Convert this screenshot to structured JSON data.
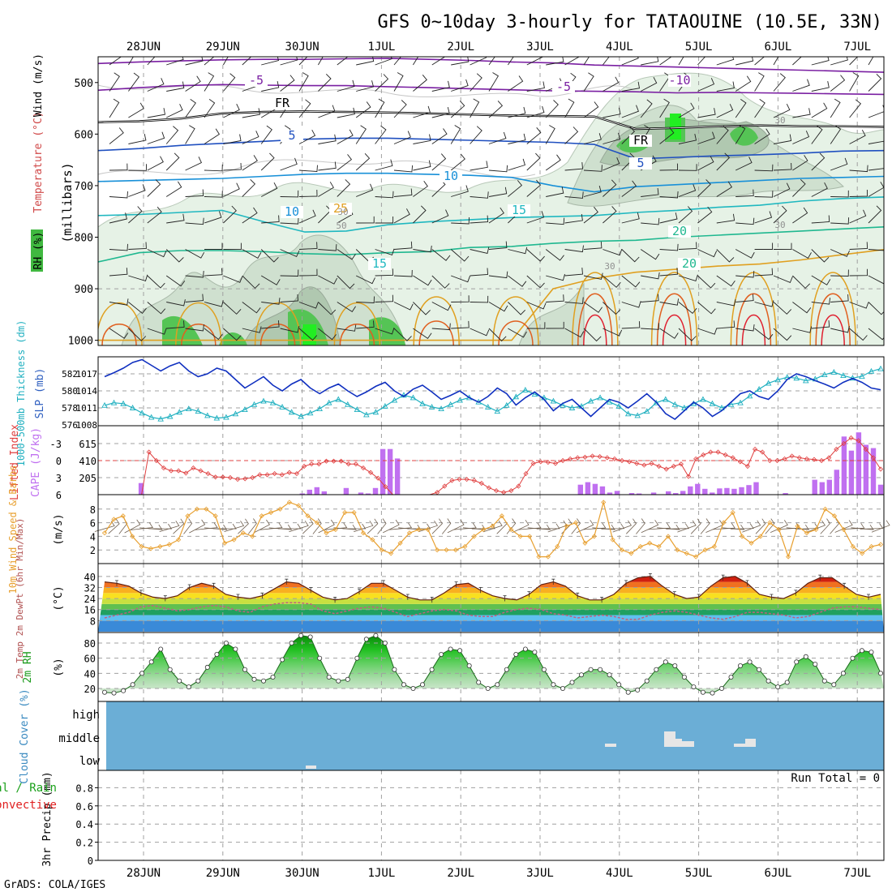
{
  "title": "GFS 0~10day 3-hourly for TATAOUINE (10.5E, 33N)",
  "footer": "GrADS: COLA/IGES",
  "dates": [
    "28JUN",
    "29JUN",
    "30JUN",
    "1JUL",
    "2JUL",
    "3JUL",
    "4JUL",
    "5JUL",
    "6JUL",
    "7JUL"
  ],
  "colors": {
    "frame": "#000000",
    "grid": "#a0a0a0",
    "cloud": "#6baed6",
    "cloud_patch": "#e6e6e6"
  },
  "chart_data": [
    {
      "type": "contour",
      "name": "upper-air",
      "ylabel": "(millibars)",
      "legend": {
        "rh": "RH (%)",
        "temperature": "Temperature (°C)",
        "wind": "Wind (m/s)"
      },
      "yticks": [
        "500",
        "600",
        "700",
        "800",
        "900",
        "1000"
      ],
      "ylim": [
        1000,
        450
      ],
      "temp_contours": [
        {
          "label": "-10",
          "color": "#7a1fa2",
          "p": [
            463,
            460,
            458,
            456,
            455,
            455,
            454,
            453,
            455,
            457,
            460,
            462,
            466,
            468,
            470,
            472,
            474,
            476,
            478,
            480
          ]
        },
        {
          "label": "-5",
          "color": "#7a1fa2",
          "p": [
            515,
            510,
            506,
            504,
            505,
            506,
            506,
            508,
            510,
            512,
            514,
            516,
            517,
            518,
            520,
            519,
            520,
            521,
            522,
            523
          ]
        },
        {
          "label": "FR",
          "color": "#000000",
          "p": [
            577,
            575,
            570,
            560,
            557,
            556,
            557,
            558,
            560,
            562,
            564,
            565,
            566,
            590,
            588,
            585,
            583,
            585,
            585,
            586
          ]
        },
        {
          "label": "5",
          "color": "#2050c0",
          "p": [
            632,
            628,
            622,
            618,
            614,
            610,
            608,
            608,
            610,
            612,
            614,
            616,
            620,
            648,
            645,
            642,
            640,
            637,
            633,
            632
          ]
        },
        {
          "label": "10",
          "color": "#1890d8",
          "p": [
            692,
            690,
            688,
            686,
            682,
            678,
            676,
            676,
            678,
            680,
            684,
            700,
            712,
            702,
            698,
            694,
            690,
            686,
            684,
            682
          ]
        },
        {
          "label": "15",
          "color": "#20b8c0",
          "p": [
            758,
            756,
            752,
            748,
            770,
            790,
            788,
            776,
            770,
            766,
            762,
            760,
            758,
            752,
            748,
            742,
            738,
            730,
            725,
            722
          ]
        },
        {
          "label": "20",
          "color": "#20b890",
          "p": [
            848,
            830,
            826,
            826,
            828,
            832,
            834,
            830,
            828,
            820,
            818,
            812,
            808,
            806,
            800,
            796,
            792,
            788,
            784,
            780
          ]
        },
        {
          "label": "25",
          "color": "#e0a020",
          "p": [
            1000,
            1000,
            1000,
            1000,
            1000,
            1000,
            1000,
            1000,
            1000,
            1000,
            1000,
            900,
            880,
            868,
            862,
            856,
            852,
            844,
            834,
            824
          ]
        }
      ],
      "temp_contour_labels": [
        "-10",
        "-5",
        "-5",
        "FR",
        "FR",
        "5",
        "5",
        "10",
        "10",
        "15",
        "15",
        "20",
        "20",
        "25"
      ],
      "rh_contour_labels": [
        "30",
        "50",
        "30",
        "30",
        "30"
      ]
    },
    {
      "type": "line",
      "name": "slp-thickness",
      "ylabel": "SLP (mb)",
      "ylabel2": "1000-500mb Thickness (dm)",
      "yticks_left": [
        "582",
        "580",
        "578",
        "576"
      ],
      "yticks_right": [
        "1017",
        "1014",
        "1011",
        "1008"
      ],
      "series": [
        {
          "name": "SLP",
          "color": "#1030c0",
          "values": [
            1016.5,
            1017.2,
            1018,
            1019,
            1019.5,
            1018.5,
            1017.5,
            1018.4,
            1019,
            1017.5,
            1016.5,
            1017,
            1018,
            1017.5,
            1016,
            1014.5,
            1015.5,
            1016.5,
            1015,
            1014,
            1015.2,
            1016,
            1014.5,
            1013.5,
            1014.5,
            1015.2,
            1014,
            1013,
            1013.8,
            1014.8,
            1015.5,
            1014,
            1013,
            1014.3,
            1015,
            1013.8,
            1012.5,
            1013.2,
            1014,
            1012.8,
            1012,
            1013,
            1014.5,
            1013.5,
            1011.5,
            1012.8,
            1013.8,
            1012.5,
            1010.5,
            1011.8,
            1012.5,
            1011,
            1009.5,
            1011,
            1012.5,
            1012,
            1011,
            1012.2,
            1013.5,
            1012,
            1010,
            1009,
            1010.5,
            1012,
            1011,
            1009.5,
            1010.5,
            1012,
            1013.5,
            1014,
            1013,
            1012.5,
            1014,
            1016,
            1017,
            1016.5,
            1015.8,
            1015.2,
            1014.5,
            1015.5,
            1016.2,
            1015.5,
            1014.5,
            1014.2
          ]
        },
        {
          "name": "Thickness",
          "color": "#20b0c0",
          "values": [
            578.3,
            578.6,
            578.5,
            578,
            577.4,
            576.9,
            576.7,
            577,
            577.5,
            577.9,
            577.6,
            577.1,
            576.8,
            576.9,
            577.3,
            577.8,
            578.4,
            578.8,
            578.6,
            578.1,
            577.5,
            577,
            577.4,
            577.9,
            578.6,
            579,
            578.4,
            577.8,
            577.2,
            577.5,
            578.2,
            578.9,
            579.5,
            579.2,
            578.5,
            578.1,
            577.9,
            578.4,
            578.9,
            579.2,
            578.7,
            578.1,
            577.6,
            578.3,
            579.3,
            580.1,
            579.6,
            579.2,
            578.8,
            578.3,
            578,
            578.2,
            578.8,
            579.2,
            578.7,
            578.2,
            577.3,
            577.1,
            577.6,
            578.6,
            579,
            578.4,
            578,
            578.5,
            579,
            578.5,
            578,
            578.4,
            578.6,
            579.4,
            580.2,
            580.9,
            581.3,
            581.6,
            581.5,
            581.2,
            581.4,
            581.9,
            582.2,
            581.8,
            581.5,
            581.7,
            582.3,
            582.6
          ]
        }
      ]
    },
    {
      "type": "bar+line",
      "name": "cape-li",
      "ylabel": "CAPE (J/kg)",
      "ylabel2": "Lifted Index",
      "yticks_left": [
        "-3",
        "0",
        "3",
        "6"
      ],
      "yticks_right": [
        "615",
        "410",
        "205"
      ],
      "series": [
        {
          "name": "CAPE",
          "color": "#c070f0",
          "values": [
            0,
            0,
            0,
            0,
            0,
            140,
            0,
            0,
            0,
            0,
            0,
            0,
            0,
            0,
            0,
            0,
            0,
            0,
            0,
            0,
            0,
            0,
            0,
            0,
            0,
            0,
            5,
            15,
            60,
            90,
            40,
            5,
            0,
            80,
            5,
            25,
            15,
            80,
            550,
            550,
            435,
            0,
            0,
            0,
            0,
            0,
            0,
            0,
            0,
            0,
            0,
            0,
            0,
            0,
            0,
            0,
            0,
            0,
            0,
            0,
            0,
            0,
            0,
            0,
            0,
            120,
            150,
            130,
            100,
            25,
            45,
            0,
            20,
            15,
            0,
            25,
            5,
            40,
            20,
            45,
            100,
            130,
            70,
            25,
            75,
            80,
            70,
            90,
            115,
            150,
            5,
            0,
            0,
            20,
            0,
            0,
            0,
            180,
            150,
            180,
            300,
            700,
            530,
            750,
            600,
            560,
            120
          ]
        },
        {
          "name": "Lifted Index",
          "color": "#e04040",
          "values": [
            6,
            6,
            6,
            6,
            6,
            6,
            -1.5,
            0,
            1.3,
            1.8,
            1.8,
            2.2,
            1.3,
            1.8,
            2.3,
            2.9,
            2.9,
            3,
            3.3,
            3.2,
            3,
            2.5,
            2.5,
            2.3,
            2.5,
            2.1,
            2.3,
            1,
            0.6,
            0.6,
            0.1,
            0.1,
            0.1,
            0.6,
            0.6,
            1.3,
            2.1,
            3.1,
            4.6,
            6,
            6,
            6,
            6,
            6,
            6,
            5.6,
            4.5,
            3.5,
            3.3,
            3.3,
            3.5,
            4,
            4.8,
            5.3,
            5.6,
            5.3,
            4.5,
            2.3,
            0.5,
            0.2,
            0.3,
            0.5,
            0,
            -0.3,
            -0.5,
            -0.6,
            -0.8,
            -0.7,
            -0.5,
            -0.3,
            0,
            0.2,
            0.5,
            0.8,
            0.5,
            1,
            1.5,
            1,
            0.6,
            2.8,
            -0.3,
            -1,
            -1.5,
            -1.5,
            -1,
            -0.5,
            0.2,
            1,
            -2,
            -1.5,
            0,
            0,
            -0.3,
            -0.8,
            -0.5,
            -0.3,
            -0.2,
            0,
            -0.5,
            -2,
            -3,
            -4,
            -3.5,
            -2,
            -0.5,
            1.5
          ]
        }
      ],
      "cape_ref_line": 410
    },
    {
      "type": "line",
      "name": "wind10m",
      "ylabel": "(m/s)",
      "ylabel2": "10m Wind Speed & Barbs",
      "yticks": [
        "8",
        "6",
        "4",
        "2"
      ],
      "ylim": [
        0,
        10
      ],
      "series": [
        {
          "name": "Speed",
          "color": "#e8a030",
          "values": [
            4.5,
            6.5,
            7,
            4,
            2.5,
            2.2,
            2.5,
            2.8,
            3.5,
            7,
            8,
            8,
            7,
            3,
            3.5,
            4.5,
            4,
            7,
            7.5,
            8,
            9,
            8.5,
            7,
            6,
            4.5,
            5,
            7.5,
            7.5,
            4.5,
            3.5,
            2,
            1.5,
            3,
            4.5,
            5,
            5,
            2,
            2,
            2,
            2.5,
            4,
            5,
            5.5,
            7,
            5,
            4,
            4,
            1,
            1,
            2.5,
            5.5,
            6,
            3,
            4,
            9,
            3.5,
            2,
            1.5,
            2.5,
            3,
            2.5,
            4,
            2,
            1.5,
            1,
            2,
            2.5,
            6,
            7.5,
            4,
            3,
            4,
            6,
            5,
            1,
            5.5,
            4.5,
            5,
            8,
            7,
            5,
            2.5,
            1.5,
            2.5,
            2.8
          ]
        }
      ]
    },
    {
      "type": "area+line",
      "name": "temp2m",
      "ylabel": "(°C)",
      "ylabel2": "2m Temp 2m DewPt (6hr Min/Max)",
      "yticks": [
        "40",
        "32",
        "24",
        "16",
        "8"
      ],
      "ylim": [
        0,
        44
      ],
      "series": [
        {
          "name": "2m Temp",
          "color": "#e06020",
          "values": [
            36,
            35,
            33,
            28,
            25,
            24,
            26,
            32,
            35,
            33,
            27,
            25,
            24,
            26,
            31,
            36,
            35,
            30,
            25,
            23,
            24,
            29,
            35,
            35,
            30,
            25,
            23,
            23,
            28,
            34,
            35,
            30,
            26,
            24,
            23,
            27,
            34,
            36,
            33,
            26,
            23,
            23,
            27,
            35,
            39,
            40,
            33,
            27,
            24,
            25,
            33,
            39,
            40,
            35,
            27,
            25,
            24,
            28,
            35,
            39,
            39,
            33,
            27,
            25,
            27
          ]
        },
        {
          "name": "2m DewPt",
          "color": "#c06080",
          "values": [
            10,
            12,
            14,
            18,
            19,
            17,
            15,
            16,
            18,
            19,
            18,
            15,
            14,
            18,
            20,
            21,
            21,
            20,
            15,
            13,
            15,
            17,
            18,
            17,
            14,
            11,
            13,
            15,
            16,
            15,
            12,
            11,
            11,
            14,
            16,
            17,
            16,
            13,
            12,
            10,
            11,
            12,
            11,
            9,
            9,
            12,
            14,
            15,
            14,
            12,
            10,
            9,
            11,
            14,
            14,
            13,
            12,
            10,
            11,
            14,
            17,
            18,
            18,
            17,
            16
          ]
        }
      ]
    },
    {
      "type": "area",
      "name": "rh2m",
      "ylabel": "(%)",
      "ylabel2": "2m RH",
      "yticks": [
        "80",
        "60",
        "40",
        "20"
      ],
      "ylim": [
        10,
        95
      ],
      "series": [
        {
          "name": "2m RH",
          "color": "#1a9a1a",
          "values": [
            15,
            14,
            17,
            25,
            40,
            55,
            72,
            45,
            30,
            22,
            30,
            48,
            65,
            80,
            72,
            45,
            32,
            30,
            35,
            58,
            80,
            90,
            88,
            60,
            35,
            30,
            32,
            60,
            85,
            90,
            80,
            45,
            25,
            20,
            25,
            45,
            65,
            72,
            70,
            50,
            28,
            20,
            25,
            45,
            65,
            72,
            68,
            45,
            25,
            20,
            28,
            38,
            45,
            45,
            38,
            25,
            15,
            18,
            30,
            45,
            55,
            50,
            35,
            22,
            15,
            14,
            20,
            35,
            50,
            55,
            45,
            30,
            22,
            28,
            55,
            62,
            52,
            30,
            25,
            40,
            60,
            70,
            68,
            40
          ]
        }
      ]
    },
    {
      "type": "table",
      "name": "cloud-cover",
      "ylabel": "Cloud Cover (%)",
      "levels": [
        "high",
        "middle",
        "low"
      ]
    },
    {
      "type": "bar",
      "name": "precip",
      "ylabel": "3hr Precip (mm)",
      "legend": [
        "Total / Rain",
        "Convective"
      ],
      "yticks": [
        "0.8",
        "0.6",
        "0.4",
        "0.2",
        "0"
      ],
      "ylim": [
        0,
        1
      ],
      "run_total": "Run Total = 0",
      "values": []
    }
  ]
}
